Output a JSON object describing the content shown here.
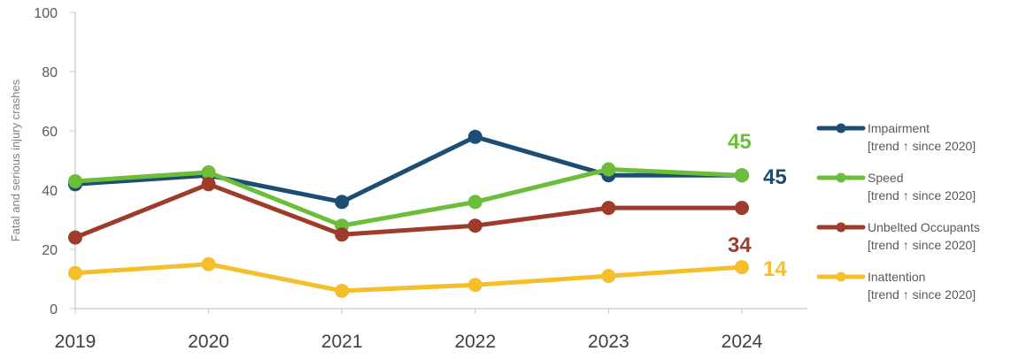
{
  "chart_data": {
    "type": "line",
    "ylabel": "Fatal and serious injury crashes",
    "ylim": [
      0,
      100
    ],
    "yticks": [
      0,
      20,
      40,
      60,
      80,
      100
    ],
    "x": [
      "2019",
      "2020",
      "2021",
      "2022",
      "2023",
      "2024"
    ],
    "grid": false,
    "legend_position": "right",
    "series": [
      {
        "name": "Impairment",
        "note": "[trend ↑ since 2020]",
        "color": "#1d4d72",
        "values": [
          42,
          45,
          36,
          58,
          45,
          45
        ],
        "end_label": "45"
      },
      {
        "name": "Speed",
        "note": "[trend ↑ since 2020]",
        "color": "#6cbd3a",
        "values": [
          43,
          46,
          28,
          36,
          47,
          45
        ],
        "end_label": "45"
      },
      {
        "name": "Unbelted Occupants",
        "note": "[trend ↑ since 2020]",
        "color": "#9e3b2b",
        "values": [
          24,
          42,
          25,
          28,
          34,
          34
        ],
        "end_label": "34"
      },
      {
        "name": "Inattention",
        "note": "[trend ↑ since 2020]",
        "color": "#f5bf2c",
        "values": [
          12,
          15,
          6,
          8,
          11,
          14
        ],
        "end_label": "14"
      }
    ]
  }
}
